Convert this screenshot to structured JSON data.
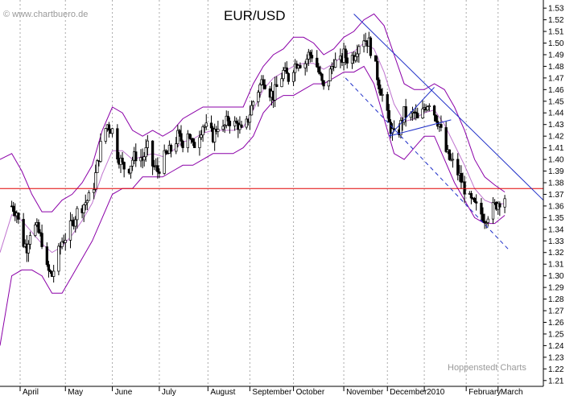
{
  "watermark_top": "© www.chartbuero.de",
  "watermark_bottom": "Hoppenstedt Charts",
  "colors": {
    "background": "#ffffff",
    "candles": "#000000",
    "bollinger": "#8b00a8",
    "support_line": "#e00000",
    "trend_lines": "#1f2fc8",
    "grid": "#aaaaaa"
  },
  "chart_data": {
    "type": "candlestick",
    "title": "EUR/USD",
    "y_axis_side": "right",
    "ylim": [
      1.205,
      1.537
    ],
    "y_ticks": [
      1.21,
      1.22,
      1.23,
      1.24,
      1.25,
      1.26,
      1.27,
      1.28,
      1.29,
      1.3,
      1.31,
      1.32,
      1.33,
      1.34,
      1.35,
      1.36,
      1.37,
      1.38,
      1.39,
      1.4,
      1.41,
      1.42,
      1.43,
      1.44,
      1.45,
      1.46,
      1.47,
      1.48,
      1.49,
      1.5,
      1.51,
      1.52,
      1.53
    ],
    "x_labels": [
      {
        "label": "April",
        "day": 5
      },
      {
        "label": "May",
        "day": 32
      },
      {
        "label": "June",
        "day": 60
      },
      {
        "label": "July",
        "day": 88
      },
      {
        "label": "August",
        "day": 117
      },
      {
        "label": "September",
        "day": 142
      },
      {
        "label": "October",
        "day": 168
      },
      {
        "label": "November",
        "day": 198
      },
      {
        "label": "December",
        "day": 224
      },
      {
        "label": "2010",
        "day": 246
      },
      {
        "label": "February",
        "day": 271
      },
      {
        "label": "March",
        "day": 290
      }
    ],
    "x_range_days": [
      -7,
      317
    ],
    "close_path": [
      [
        0,
        1.36
      ],
      [
        3,
        1.355
      ],
      [
        6,
        1.33
      ],
      [
        9,
        1.325
      ],
      [
        12,
        1.345
      ],
      [
        15,
        1.34
      ],
      [
        18,
        1.33
      ],
      [
        21,
        1.305
      ],
      [
        24,
        1.3
      ],
      [
        27,
        1.315
      ],
      [
        30,
        1.33
      ],
      [
        33,
        1.335
      ],
      [
        36,
        1.345
      ],
      [
        39,
        1.355
      ],
      [
        42,
        1.36
      ],
      [
        45,
        1.365
      ],
      [
        48,
        1.37
      ],
      [
        51,
        1.395
      ],
      [
        54,
        1.42
      ],
      [
        57,
        1.43
      ],
      [
        60,
        1.425
      ],
      [
        63,
        1.405
      ],
      [
        66,
        1.395
      ],
      [
        69,
        1.39
      ],
      [
        72,
        1.4
      ],
      [
        75,
        1.405
      ],
      [
        78,
        1.4
      ],
      [
        81,
        1.41
      ],
      [
        84,
        1.395
      ],
      [
        87,
        1.39
      ],
      [
        90,
        1.4
      ],
      [
        93,
        1.405
      ],
      [
        96,
        1.41
      ],
      [
        99,
        1.42
      ],
      [
        102,
        1.415
      ],
      [
        105,
        1.425
      ],
      [
        108,
        1.41
      ],
      [
        111,
        1.42
      ],
      [
        114,
        1.43
      ],
      [
        117,
        1.425
      ],
      [
        120,
        1.42
      ],
      [
        123,
        1.43
      ],
      [
        126,
        1.425
      ],
      [
        129,
        1.435
      ],
      [
        132,
        1.43
      ],
      [
        135,
        1.43
      ],
      [
        138,
        1.42
      ],
      [
        141,
        1.435
      ],
      [
        144,
        1.45
      ],
      [
        147,
        1.46
      ],
      [
        150,
        1.47
      ],
      [
        153,
        1.46
      ],
      [
        156,
        1.455
      ],
      [
        159,
        1.465
      ],
      [
        162,
        1.475
      ],
      [
        165,
        1.47
      ],
      [
        168,
        1.48
      ],
      [
        171,
        1.485
      ],
      [
        174,
        1.48
      ],
      [
        177,
        1.49
      ],
      [
        180,
        1.49
      ],
      [
        183,
        1.475
      ],
      [
        186,
        1.46
      ],
      [
        189,
        1.47
      ],
      [
        192,
        1.485
      ],
      [
        195,
        1.48
      ],
      [
        198,
        1.49
      ],
      [
        201,
        1.485
      ],
      [
        204,
        1.49
      ],
      [
        207,
        1.5
      ],
      [
        210,
        1.505
      ],
      [
        213,
        1.5
      ],
      [
        216,
        1.485
      ],
      [
        219,
        1.465
      ],
      [
        222,
        1.45
      ],
      [
        225,
        1.43
      ],
      [
        228,
        1.42
      ],
      [
        231,
        1.425
      ],
      [
        234,
        1.44
      ],
      [
        237,
        1.435
      ],
      [
        240,
        1.44
      ],
      [
        243,
        1.43
      ],
      [
        246,
        1.445
      ],
      [
        249,
        1.45
      ],
      [
        252,
        1.44
      ],
      [
        255,
        1.43
      ],
      [
        258,
        1.41
      ],
      [
        261,
        1.4
      ],
      [
        264,
        1.395
      ],
      [
        267,
        1.385
      ],
      [
        270,
        1.375
      ],
      [
        273,
        1.365
      ],
      [
        276,
        1.36
      ],
      [
        279,
        1.355
      ],
      [
        282,
        1.35
      ],
      [
        285,
        1.355
      ],
      [
        288,
        1.36
      ],
      [
        291,
        1.365
      ],
      [
        294,
        1.368
      ]
    ],
    "bollinger_upper": [
      [
        -7,
        1.4
      ],
      [
        0,
        1.405
      ],
      [
        6,
        1.39
      ],
      [
        12,
        1.37
      ],
      [
        18,
        1.355
      ],
      [
        24,
        1.355
      ],
      [
        30,
        1.365
      ],
      [
        36,
        1.37
      ],
      [
        42,
        1.38
      ],
      [
        48,
        1.395
      ],
      [
        54,
        1.425
      ],
      [
        60,
        1.445
      ],
      [
        66,
        1.44
      ],
      [
        72,
        1.425
      ],
      [
        78,
        1.42
      ],
      [
        84,
        1.425
      ],
      [
        90,
        1.42
      ],
      [
        96,
        1.425
      ],
      [
        102,
        1.435
      ],
      [
        108,
        1.44
      ],
      [
        114,
        1.445
      ],
      [
        120,
        1.445
      ],
      [
        126,
        1.445
      ],
      [
        132,
        1.445
      ],
      [
        138,
        1.445
      ],
      [
        144,
        1.465
      ],
      [
        150,
        1.48
      ],
      [
        156,
        1.49
      ],
      [
        162,
        1.495
      ],
      [
        168,
        1.505
      ],
      [
        174,
        1.505
      ],
      [
        180,
        1.5
      ],
      [
        186,
        1.49
      ],
      [
        192,
        1.495
      ],
      [
        198,
        1.505
      ],
      [
        204,
        1.51
      ],
      [
        210,
        1.52
      ],
      [
        216,
        1.525
      ],
      [
        222,
        1.515
      ],
      [
        228,
        1.49
      ],
      [
        234,
        1.465
      ],
      [
        240,
        1.46
      ],
      [
        246,
        1.46
      ],
      [
        252,
        1.465
      ],
      [
        258,
        1.46
      ],
      [
        264,
        1.445
      ],
      [
        270,
        1.425
      ],
      [
        276,
        1.4
      ],
      [
        282,
        1.385
      ],
      [
        288,
        1.378
      ],
      [
        294,
        1.372
      ]
    ],
    "bollinger_lower": [
      [
        -7,
        1.24
      ],
      [
        0,
        1.3
      ],
      [
        6,
        1.305
      ],
      [
        12,
        1.305
      ],
      [
        18,
        1.3
      ],
      [
        24,
        1.285
      ],
      [
        30,
        1.285
      ],
      [
        36,
        1.3
      ],
      [
        42,
        1.315
      ],
      [
        48,
        1.33
      ],
      [
        54,
        1.35
      ],
      [
        60,
        1.37
      ],
      [
        66,
        1.375
      ],
      [
        72,
        1.375
      ],
      [
        78,
        1.385
      ],
      [
        84,
        1.385
      ],
      [
        90,
        1.385
      ],
      [
        96,
        1.39
      ],
      [
        102,
        1.395
      ],
      [
        108,
        1.395
      ],
      [
        114,
        1.4
      ],
      [
        120,
        1.405
      ],
      [
        126,
        1.405
      ],
      [
        132,
        1.405
      ],
      [
        138,
        1.41
      ],
      [
        144,
        1.42
      ],
      [
        150,
        1.44
      ],
      [
        156,
        1.45
      ],
      [
        162,
        1.455
      ],
      [
        168,
        1.455
      ],
      [
        174,
        1.46
      ],
      [
        180,
        1.465
      ],
      [
        186,
        1.465
      ],
      [
        192,
        1.47
      ],
      [
        198,
        1.475
      ],
      [
        204,
        1.475
      ],
      [
        210,
        1.48
      ],
      [
        216,
        1.465
      ],
      [
        222,
        1.435
      ],
      [
        228,
        1.405
      ],
      [
        234,
        1.4
      ],
      [
        240,
        1.41
      ],
      [
        246,
        1.42
      ],
      [
        252,
        1.42
      ],
      [
        258,
        1.4
      ],
      [
        264,
        1.38
      ],
      [
        270,
        1.365
      ],
      [
        276,
        1.35
      ],
      [
        282,
        1.345
      ],
      [
        288,
        1.345
      ],
      [
        294,
        1.352
      ]
    ],
    "support_line": {
      "value": 1.375
    },
    "trend_lines": [
      {
        "style": "solid",
        "from": [
          204,
          1.525
        ],
        "to": [
          317,
          1.365
        ]
      },
      {
        "style": "solid",
        "from": [
          225,
          1.42
        ],
        "to": [
          252,
          1.462
        ]
      },
      {
        "style": "solid",
        "from": [
          225,
          1.42
        ],
        "to": [
          262,
          1.434
        ]
      },
      {
        "style": "dashed",
        "from": [
          199,
          1.47
        ],
        "to": [
          296,
          1.323
        ]
      }
    ]
  }
}
